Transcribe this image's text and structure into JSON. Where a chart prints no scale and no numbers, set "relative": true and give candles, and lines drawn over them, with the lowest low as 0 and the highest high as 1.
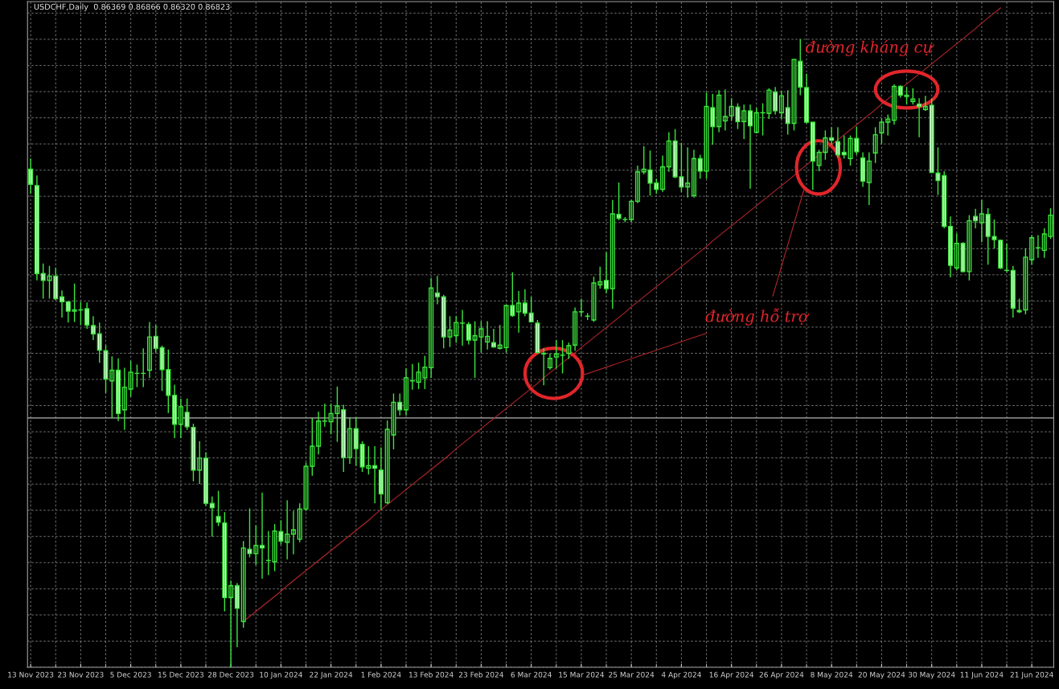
{
  "chart_data": {
    "type": "candlestick",
    "relative": true,
    "grid": true,
    "title": "USDCHF,Daily  0.86369 0.86866 0.86320 0.86823",
    "categories": [
      "13 Nov 2023",
      null,
      null,
      null,
      null,
      null,
      null,
      null,
      "23 Nov 2023",
      null,
      null,
      null,
      null,
      null,
      null,
      null,
      "5 Dec 2023",
      null,
      null,
      null,
      null,
      null,
      null,
      null,
      "15 Dec 2023",
      null,
      null,
      null,
      null,
      null,
      null,
      null,
      "28 Dec 2023",
      null,
      null,
      null,
      null,
      null,
      null,
      null,
      "10 Jan 2024",
      null,
      null,
      null,
      null,
      null,
      null,
      null,
      "22 Jan 2024",
      null,
      null,
      null,
      null,
      null,
      null,
      null,
      "1 Feb 2024",
      null,
      null,
      null,
      null,
      null,
      null,
      null,
      "13 Feb 2024",
      null,
      null,
      null,
      null,
      null,
      null,
      null,
      "23 Feb 2024",
      null,
      null,
      null,
      null,
      null,
      null,
      null,
      "6 Mar 2024",
      null,
      null,
      null,
      null,
      null,
      null,
      null,
      "15 Mar 2024",
      null,
      null,
      null,
      null,
      null,
      null,
      null,
      "25 Mar 2024",
      null,
      null,
      null,
      null,
      null,
      null,
      null,
      "4 Apr 2024",
      null,
      null,
      null,
      null,
      null,
      null,
      null,
      "16 Apr 2024",
      null,
      null,
      null,
      null,
      null,
      null,
      null,
      "26 Apr 2024",
      null,
      null,
      null,
      null,
      null,
      null,
      null,
      "8 May 2024",
      null,
      null,
      null,
      null,
      null,
      null,
      null,
      "20 May 2024",
      null,
      null,
      null,
      null,
      null,
      null,
      null,
      "30 May 2024",
      null,
      null,
      null,
      null,
      null,
      null,
      null,
      "11 Jun 2024",
      null,
      null,
      null,
      null,
      null,
      null,
      null,
      "21 Jun 2024",
      null,
      null,
      null
    ],
    "color": "#3ce63c",
    "ohlc": [
      [
        0.793,
        0.81,
        0.754,
        0.769
      ],
      [
        0.767,
        0.783,
        0.616,
        0.627
      ],
      [
        0.627,
        0.643,
        0.587,
        0.616
      ],
      [
        0.616,
        0.639,
        0.587,
        0.623
      ],
      [
        0.623,
        0.636,
        0.585,
        0.587
      ],
      [
        0.59,
        0.6,
        0.557,
        0.582
      ],
      [
        0.582,
        0.582,
        0.549,
        0.567
      ],
      [
        0.567,
        0.611,
        0.55,
        0.569
      ],
      [
        0.569,
        0.582,
        0.545,
        0.569
      ],
      [
        0.571,
        0.581,
        0.539,
        0.545
      ],
      [
        0.544,
        0.559,
        0.521,
        0.531
      ],
      [
        0.531,
        0.549,
        0.485,
        0.505
      ],
      [
        0.504,
        0.513,
        0.437,
        0.459
      ],
      [
        0.456,
        0.495,
        0.397,
        0.473
      ],
      [
        0.473,
        0.492,
        0.392,
        0.404
      ],
      [
        0.41,
        0.477,
        0.378,
        0.446
      ],
      [
        0.443,
        0.488,
        0.431,
        0.47
      ],
      [
        0.468,
        0.482,
        0.446,
        0.468
      ],
      [
        0.468,
        0.508,
        0.446,
        0.468
      ],
      [
        0.473,
        0.55,
        0.461,
        0.526
      ],
      [
        0.527,
        0.545,
        0.501,
        0.508
      ],
      [
        0.509,
        0.512,
        0.44,
        0.474
      ],
      [
        0.474,
        0.506,
        0.405,
        0.433
      ],
      [
        0.433,
        0.45,
        0.365,
        0.387
      ],
      [
        0.387,
        0.428,
        0.365,
        0.415
      ],
      [
        0.406,
        0.428,
        0.378,
        0.383
      ],
      [
        0.382,
        0.388,
        0.296,
        0.314
      ],
      [
        0.314,
        0.36,
        0.292,
        0.333
      ],
      [
        0.333,
        0.342,
        0.257,
        0.261
      ],
      [
        0.261,
        0.272,
        0.208,
        0.254
      ],
      [
        0.24,
        0.281,
        0.225,
        0.231
      ],
      [
        0.23,
        0.247,
        0.089,
        0.111
      ],
      [
        0.111,
        0.138,
        0,
        0.13
      ],
      [
        0.13,
        0.134,
        0.032,
        0.094
      ],
      [
        0.073,
        0.201,
        0.063,
        0.19
      ],
      [
        0.188,
        0.253,
        0.175,
        0.181
      ],
      [
        0.181,
        0.226,
        0.163,
        0.194
      ],
      [
        0.194,
        0.278,
        0.141,
        0.19
      ],
      [
        0.17,
        0.217,
        0.147,
        0.17
      ],
      [
        0.168,
        0.228,
        0.153,
        0.217
      ],
      [
        0.216,
        0.234,
        0.195,
        0.201
      ],
      [
        0.199,
        0.266,
        0.172,
        0.212
      ],
      [
        0.212,
        0.249,
        0.18,
        0.219
      ],
      [
        0.204,
        0.261,
        0.199,
        0.252
      ],
      [
        0.252,
        0.326,
        0.249,
        0.32
      ],
      [
        0.32,
        0.397,
        0.305,
        0.352
      ],
      [
        0.352,
        0.407,
        0.339,
        0.392
      ],
      [
        0.392,
        0.42,
        0.383,
        0.392
      ],
      [
        0.391,
        0.42,
        0.371,
        0.404
      ],
      [
        0.404,
        0.447,
        0.359,
        0.416
      ],
      [
        0.41,
        0.418,
        0.311,
        0.334
      ],
      [
        0.334,
        0.398,
        0.324,
        0.38
      ],
      [
        0.38,
        0.398,
        0.321,
        0.348
      ],
      [
        0.355,
        0.36,
        0.311,
        0.319
      ],
      [
        0.317,
        0.352,
        0.307,
        0.321
      ],
      [
        0.321,
        0.352,
        0.261,
        0.317
      ],
      [
        0.314,
        0.35,
        0.251,
        0.276
      ],
      [
        0.262,
        0.393,
        0.26,
        0.379
      ],
      [
        0.37,
        0.436,
        0.347,
        0.422
      ],
      [
        0.422,
        0.436,
        0.401,
        0.41
      ],
      [
        0.41,
        0.476,
        0.401,
        0.461
      ],
      [
        0.456,
        0.483,
        0.442,
        0.456
      ],
      [
        0.454,
        0.485,
        0.443,
        0.47
      ],
      [
        0.461,
        0.496,
        0.443,
        0.478
      ],
      [
        0.477,
        0.62,
        0.461,
        0.604
      ],
      [
        0.596,
        0.623,
        0.578,
        0.59
      ],
      [
        0.59,
        0.593,
        0.508,
        0.526
      ],
      [
        0.526,
        0.559,
        0.51,
        0.537
      ],
      [
        0.528,
        0.559,
        0.517,
        0.549
      ],
      [
        0.548,
        0.569,
        0.512,
        0.548
      ],
      [
        0.546,
        0.55,
        0.514,
        0.521
      ],
      [
        0.521,
        0.551,
        0.461,
        0.528
      ],
      [
        0.526,
        0.551,
        0.501,
        0.539
      ],
      [
        0.518,
        0.551,
        0.506,
        0.527
      ],
      [
        0.517,
        0.539,
        0.509,
        0.51
      ],
      [
        0.508,
        0.545,
        0.506,
        0.513
      ],
      [
        0.509,
        0.577,
        0.501,
        0.576
      ],
      [
        0.576,
        0.629,
        0.558,
        0.56
      ],
      [
        0.566,
        0.599,
        0.533,
        0.58
      ],
      [
        0.58,
        0.602,
        0.559,
        0.564
      ],
      [
        0.564,
        0.59,
        0.549,
        0.55
      ],
      [
        0.548,
        0.553,
        0.5,
        0.501
      ],
      [
        0.499,
        0.508,
        0.449,
        0.5
      ],
      [
        0.477,
        0.5,
        0.474,
        0.492
      ],
      [
        0.494,
        0.521,
        0.476,
        0.499
      ],
      [
        0.497,
        0.521,
        0.468,
        0.497
      ],
      [
        0.5,
        0.517,
        0.491,
        0.512
      ],
      [
        0.513,
        0.573,
        0.504,
        0.566
      ],
      [
        0.566,
        0.587,
        0.559,
        0.566
      ],
      [
        0.559,
        0.564,
        0.553,
        0.559
      ],
      [
        0.553,
        0.622,
        0.55,
        0.612
      ],
      [
        0.609,
        0.638,
        0.603,
        0.614
      ],
      [
        0.616,
        0.661,
        0.596,
        0.603
      ],
      [
        0.603,
        0.744,
        0.571,
        0.722
      ],
      [
        0.721,
        0.772,
        0.712,
        0.715
      ],
      [
        0.713,
        0.717,
        0.709,
        0.713
      ],
      [
        0.713,
        0.744,
        0.709,
        0.742
      ],
      [
        0.742,
        0.799,
        0.739,
        0.789
      ],
      [
        0.789,
        0.83,
        0.785,
        0.793
      ],
      [
        0.792,
        0.823,
        0.751,
        0.771
      ],
      [
        0.771,
        0.778,
        0.754,
        0.761
      ],
      [
        0.761,
        0.815,
        0.757,
        0.797
      ],
      [
        0.797,
        0.852,
        0.789,
        0.838
      ],
      [
        0.838,
        0.857,
        0.779,
        0.781
      ],
      [
        0.781,
        0.835,
        0.757,
        0.765
      ],
      [
        0.765,
        0.828,
        0.748,
        0.771
      ],
      [
        0.751,
        0.824,
        0.748,
        0.81
      ],
      [
        0.81,
        0.816,
        0.778,
        0.79
      ],
      [
        0.79,
        0.915,
        0.778,
        0.893
      ],
      [
        0.891,
        0.913,
        0.832,
        0.861
      ],
      [
        0.861,
        0.919,
        0.852,
        0.911
      ],
      [
        0.87,
        0.92,
        0.855,
        0.877
      ],
      [
        0.878,
        0.906,
        0.87,
        0.893
      ],
      [
        0.892,
        0.898,
        0.857,
        0.869
      ],
      [
        0.869,
        0.896,
        0.841,
        0.886
      ],
      [
        0.886,
        0.896,
        0.762,
        0.862
      ],
      [
        0.852,
        0.891,
        0.85,
        0.883
      ],
      [
        0.883,
        0.898,
        0.847,
        0.883
      ],
      [
        0.882,
        0.922,
        0.873,
        0.919
      ],
      [
        0.916,
        0.924,
        0.88,
        0.886
      ],
      [
        0.883,
        0.918,
        0.873,
        0.91
      ],
      [
        0.891,
        0.919,
        0.848,
        0.866
      ],
      [
        0.866,
        0.969,
        0.855,
        0.968
      ],
      [
        0.965,
        1,
        0.911,
        0.924
      ],
      [
        0.923,
        0.945,
        0.866,
        0.868
      ],
      [
        0.868,
        0.868,
        0.76,
        0.806
      ],
      [
        0.799,
        0.824,
        0.79,
        0.82
      ],
      [
        0.82,
        0.855,
        0.808,
        0.843
      ],
      [
        0.843,
        0.86,
        0.832,
        0.839
      ],
      [
        0.837,
        0.86,
        0.812,
        0.816
      ],
      [
        0.82,
        0.847,
        0.81,
        0.816
      ],
      [
        0.81,
        0.847,
        0.799,
        0.842
      ],
      [
        0.842,
        0.861,
        0.816,
        0.821
      ],
      [
        0.811,
        0.82,
        0.765,
        0.774
      ],
      [
        0.772,
        0.82,
        0.736,
        0.806
      ],
      [
        0.819,
        0.86,
        0.803,
        0.848
      ],
      [
        0.851,
        0.874,
        0.834,
        0.868
      ],
      [
        0.868,
        0.88,
        0.847,
        0.873
      ],
      [
        0.871,
        0.928,
        0.864,
        0.925
      ],
      [
        0.925,
        0.927,
        0.907,
        0.911
      ],
      [
        0.909,
        0.924,
        0.896,
        0.911
      ],
      [
        0.901,
        0.922,
        0.896,
        0.905
      ],
      [
        0.897,
        0.906,
        0.844,
        0.893
      ],
      [
        0.888,
        0.91,
        0.886,
        0.893
      ],
      [
        0.895,
        0.906,
        0.787,
        0.788
      ],
      [
        0.787,
        0.828,
        0.752,
        0.775
      ],
      [
        0.783,
        0.79,
        0.699,
        0.702
      ],
      [
        0.702,
        0.718,
        0.621,
        0.64
      ],
      [
        0.636,
        0.691,
        0.632,
        0.675
      ],
      [
        0.675,
        0.677,
        0.629,
        0.63
      ],
      [
        0.63,
        0.72,
        0.616,
        0.711
      ],
      [
        0.718,
        0.73,
        0.699,
        0.711
      ],
      [
        0.708,
        0.744,
        0.677,
        0.722
      ],
      [
        0.721,
        0.731,
        0.641,
        0.686
      ],
      [
        0.686,
        0.713,
        0.667,
        0.681
      ],
      [
        0.68,
        0.681,
        0.634,
        0.636
      ],
      [
        0.632,
        0.675,
        0.629,
        0.632
      ],
      [
        0.632,
        0.639,
        0.557,
        0.572
      ],
      [
        0.568,
        0.587,
        0.564,
        0.566
      ],
      [
        0.569,
        0.667,
        0.562,
        0.653
      ],
      [
        0.649,
        0.688,
        0.641,
        0.684
      ],
      [
        0.668,
        0.688,
        0.652,
        0.668
      ],
      [
        0.664,
        0.699,
        0.652,
        0.69
      ],
      [
        0.686,
        0.731,
        0.682,
        0.72
      ]
    ],
    "series": [
      {
        "type": "line",
        "color": "#b3262a",
        "values": [
          null,
          null,
          null,
          null,
          null,
          null,
          null,
          null,
          null,
          null,
          null,
          null,
          null,
          null,
          null,
          null,
          null,
          null,
          null,
          null,
          null,
          null,
          null,
          null,
          null,
          null,
          null,
          null,
          null,
          null,
          null,
          null,
          null,
          null,
          0.073,
          0.081,
          0.089,
          0.097,
          0.105,
          0.113,
          0.121,
          0.13,
          0.138,
          0.146,
          0.154,
          0.162,
          0.17,
          0.178,
          0.186,
          0.194,
          0.202,
          0.21,
          0.218,
          0.226,
          0.234,
          0.243,
          0.251,
          0.259,
          0.267,
          0.275,
          0.283,
          0.291,
          0.299,
          0.307,
          0.315,
          0.323,
          0.331,
          0.339,
          0.348,
          0.356,
          0.364,
          0.372,
          0.38,
          0.388,
          0.396,
          0.404,
          0.412,
          0.42,
          0.428,
          0.436,
          0.444,
          0.452,
          0.461,
          0.469,
          0.477,
          0.485,
          0.493,
          0.501,
          0.509,
          0.517,
          0.525,
          0.533,
          0.541,
          0.549,
          0.557,
          0.565,
          0.574,
          0.582,
          0.59,
          0.598,
          0.606,
          0.614,
          0.622,
          0.63,
          0.638,
          0.646,
          0.654,
          0.662,
          0.67,
          0.679,
          0.687,
          0.695,
          0.703,
          0.711,
          0.719,
          0.727,
          0.735,
          0.743,
          0.751,
          0.759,
          0.767,
          0.775,
          0.783,
          0.792,
          0.8,
          0.808,
          0.816,
          0.824,
          0.832,
          0.84,
          0.848,
          0.856,
          0.864,
          0.872,
          0.88,
          0.888,
          0.897,
          0.905,
          0.913,
          0.921,
          0.929,
          0.937,
          0.945,
          0.953,
          0.961,
          0.969,
          0.977,
          0.985,
          0.993,
          1.001,
          1.009,
          1.017,
          1.026,
          1.034,
          1.042,
          1.05,
          null,
          null,
          null,
          null,
          null,
          null,
          null,
          null
        ]
      }
    ],
    "ref_lines": [
      {
        "axis": "y",
        "value": 0.397,
        "color": "#b4b4b4"
      }
    ],
    "annotations": [
      "đường kháng cự",
      "đường hỗ trợ"
    ]
  }
}
